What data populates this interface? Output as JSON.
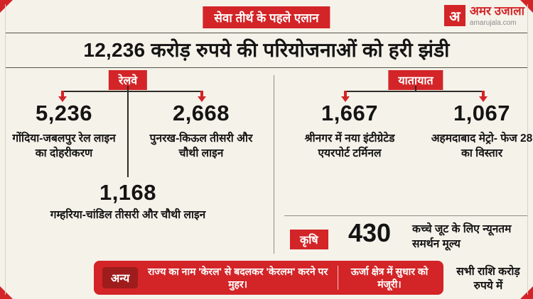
{
  "header": {
    "badge": "सेवा तीर्थ के पहले एलान",
    "logo": {
      "letter": "अ",
      "name": "अमर उजाला",
      "site": "amarujala.com"
    },
    "headline": "12,236 करोड़ रुपये की परियोजनाओं को हरी झंडी"
  },
  "sections": {
    "railway": {
      "label": "रेलवे",
      "items": [
        {
          "value": "5,236",
          "caption": "गोंदिया-जबलपुर रेल लाइन का दोहरीकरण"
        },
        {
          "value": "2,668",
          "caption": "पुनरख-किऊल तीसरी और चौथी लाइन"
        },
        {
          "value": "1,168",
          "caption": "गम्हरिया-चांडिल तीसरी और चौथी लाइन"
        }
      ]
    },
    "transport": {
      "label": "यातायात",
      "items": [
        {
          "value": "1,667",
          "caption": "श्रीनगर में नया इंटीग्रेटेड एयरपोर्ट टर्मिनल"
        },
        {
          "value": "1,067",
          "caption": "अहमदाबाद मेट्रो- फेज 28 का विस्तार"
        }
      ]
    },
    "agriculture": {
      "label": "कृषि",
      "value": "430",
      "caption": "कच्चे जूट के लिए न्यूनतम समर्थन मूल्य"
    },
    "other": {
      "label": "अन्य",
      "items": [
        {
          "text": "राज्य का नाम 'केरल' से बदलकर 'केरलम' करने पर मुहर।"
        },
        {
          "text": "ऊर्जा क्षेत्र में सुधार को मंजूरी।"
        }
      ]
    }
  },
  "footnote": "सभी राशि करोड़ रुपये में",
  "colors": {
    "accent_red": "#d32427",
    "dark_red": "#9e1c1c",
    "background": "#f5f2ea",
    "text": "#141414"
  }
}
